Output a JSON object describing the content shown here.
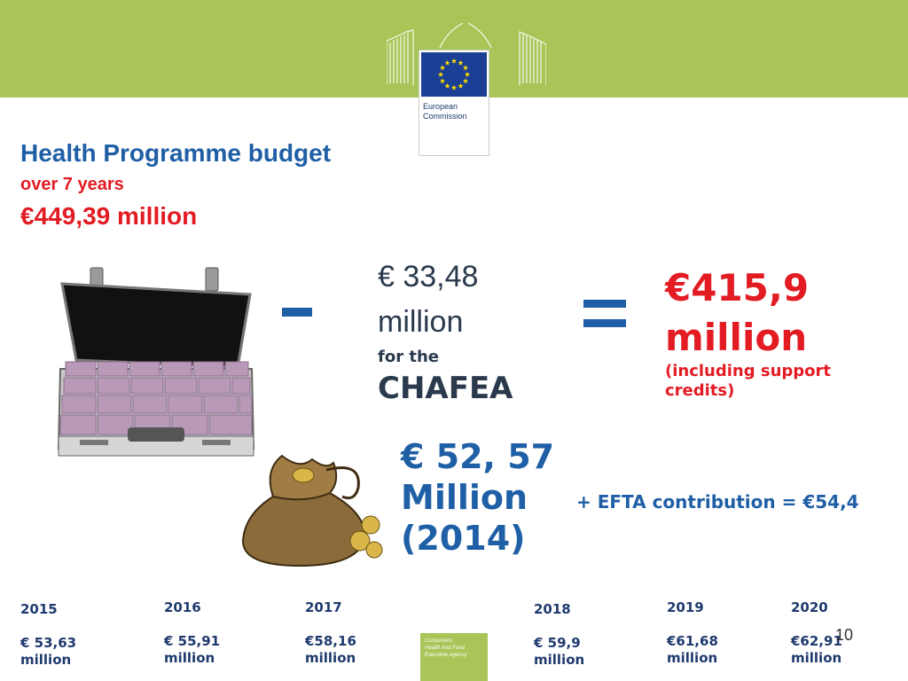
{
  "header": {
    "logo_text": [
      "European",
      "Commission"
    ],
    "colors": {
      "bar": "#a9c557",
      "flag_blue": "#1a3f95",
      "star_yellow": "#ffde00"
    }
  },
  "headline": {
    "title": "Health Programme budget",
    "subtitle": "over 7 years",
    "total": "€449,39 million"
  },
  "equation": {
    "chafea_amount_line1": "€  33,48",
    "chafea_amount_line2": "million",
    "chafea_for": "for the",
    "chafea_name": "CHAFEA",
    "result_amount": "€415,9",
    "result_million": "million",
    "result_note": "(including support credits)"
  },
  "year2014": {
    "line1": "€ 52, 57",
    "line2": "Million",
    "line3": "(2014)",
    "efta": "+ EFTA contribution = €54,4"
  },
  "years": [
    {
      "year": "2015",
      "amount_line1": "€ 53,63",
      "amount_line2": "million"
    },
    {
      "year": "2016",
      "amount_line1": "€ 55,91",
      "amount_line2": "million"
    },
    {
      "year": "2017",
      "amount_line1": "€58,16",
      "amount_line2": "million"
    },
    {
      "year": "2018",
      "amount_line1": "€ 59,9",
      "amount_line2": "million"
    },
    {
      "year": "2019",
      "amount_line1": "€61,68",
      "amount_line2": "million"
    },
    {
      "year": "2020",
      "amount_line1": "€62,91",
      "amount_line2": "million"
    }
  ],
  "footer": {
    "chafea_logo_text": [
      "Consumers,",
      "Health And Food",
      "Executive  Agency"
    ],
    "page_number": "10"
  }
}
